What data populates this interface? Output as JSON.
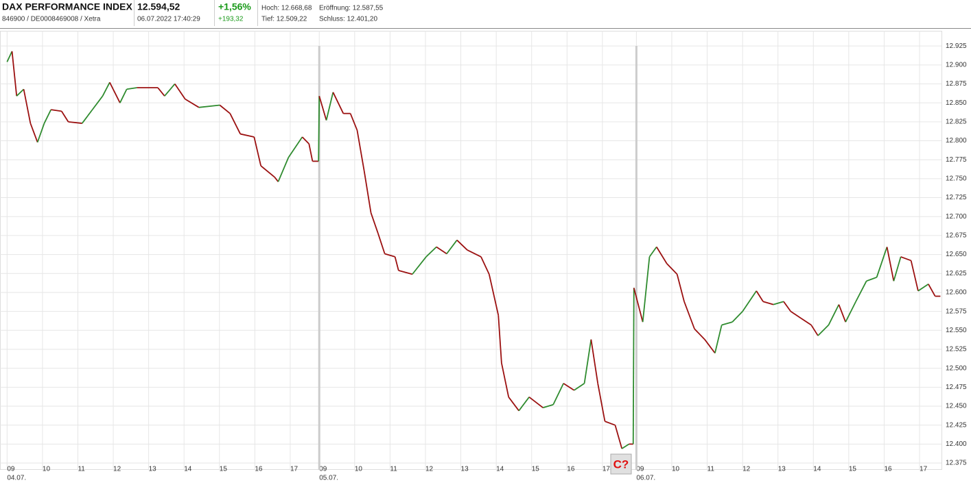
{
  "header": {
    "title": "DAX PERFORMANCE INDEX",
    "subtitle": "846900 / DE0008469008 / Xetra",
    "price": "12.594,52",
    "timestamp": "06.07.2022 17:40:29",
    "change_pct": "+1,56%",
    "change_abs": "+193,32",
    "high": "Hoch: 12.668,68",
    "open": "Eröffnung: 12.587,55",
    "low": "Tief: 12.509,22",
    "close": "Schluss: 12.401,20"
  },
  "chart_data": {
    "type": "line",
    "color": "#9b1010",
    "up_color": "#2e8b2e",
    "grid": true,
    "annotation": "C?",
    "x": [
      0,
      0.14,
      0.27,
      0.47,
      0.66,
      0.86,
      1.05,
      1.24,
      1.54,
      1.73,
      2.12,
      2.41,
      2.7,
      2.9,
      3.19,
      3.38,
      3.67,
      4.26,
      4.45,
      4.74,
      5.03,
      5.42,
      6.01,
      6.3,
      6.59,
      6.98,
      7.17,
      7.56,
      7.66,
      7.95,
      8.34,
      8.53,
      8.63,
      8.8,
      8.82,
      9.02,
      9.21,
      9.5,
      9.7,
      9.89,
      10.09,
      10.28,
      10.48,
      10.67,
      10.96,
      11.06,
      11.45,
      11.84,
      12.13,
      12.42,
      12.71,
      13.0,
      13.39,
      13.62,
      13.88,
      13.97,
      14.17,
      14.46,
      14.75,
      15.14,
      15.43,
      15.72,
      16.02,
      16.31,
      16.5,
      16.69,
      16.89,
      17.18,
      17.37,
      17.57,
      17.69,
      17.71,
      17.96,
      18.15,
      18.35,
      18.64,
      18.93,
      19.13,
      19.42,
      19.71,
      20.0,
      20.19,
      20.49,
      20.78,
      21.17,
      21.36,
      21.65,
      21.94,
      22.14,
      22.43,
      22.72,
      22.91,
      23.21,
      23.5,
      23.69,
      23.98,
      24.28,
      24.57,
      24.86,
      25.05,
      25.25,
      25.54,
      25.74,
      26.03,
      26.22,
      26.37
    ],
    "values": [
      12904,
      12918,
      12859,
      12868,
      12823,
      12798,
      12823,
      12841,
      12839,
      12825,
      12823,
      12841,
      12859,
      12877,
      12850,
      12868,
      12870,
      12870,
      12859,
      12875,
      12855,
      12844,
      12847,
      12836,
      12809,
      12805,
      12767,
      12752,
      12746,
      12778,
      12805,
      12796,
      12773,
      12773,
      12859,
      12827,
      12864,
      12836,
      12836,
      12814,
      12760,
      12705,
      12678,
      12651,
      12647,
      12629,
      12624,
      12647,
      12660,
      12651,
      12669,
      12656,
      12647,
      12624,
      12570,
      12507,
      12462,
      12444,
      12462,
      12448,
      12452,
      12480,
      12471,
      12480,
      12538,
      12480,
      12430,
      12425,
      12394,
      12400,
      12400,
      12606,
      12561,
      12647,
      12660,
      12638,
      12624,
      12588,
      12552,
      12538,
      12520,
      12557,
      12561,
      12575,
      12602,
      12588,
      12584,
      12588,
      12575,
      12566,
      12557,
      12543,
      12557,
      12584,
      12561,
      12588,
      12615,
      12620,
      12660,
      12615,
      12647,
      12642,
      12602,
      12611,
      12595,
      12595
    ],
    "xlim": [
      -0.2,
      26.4
    ],
    "ylim": [
      12366,
      12945
    ],
    "xticks": [
      {
        "value": 0,
        "label": "09"
      },
      {
        "value": 1,
        "label": "10"
      },
      {
        "value": 2,
        "label": "11"
      },
      {
        "value": 3,
        "label": "12"
      },
      {
        "value": 4,
        "label": "13"
      },
      {
        "value": 5,
        "label": "14"
      },
      {
        "value": 6,
        "label": "15"
      },
      {
        "value": 7,
        "label": "16"
      },
      {
        "value": 8,
        "label": "17"
      },
      {
        "value": 8.82,
        "label": "09"
      },
      {
        "value": 9.82,
        "label": "10"
      },
      {
        "value": 10.82,
        "label": "11"
      },
      {
        "value": 11.82,
        "label": "12"
      },
      {
        "value": 12.82,
        "label": "13"
      },
      {
        "value": 13.82,
        "label": "14"
      },
      {
        "value": 14.82,
        "label": "15"
      },
      {
        "value": 15.82,
        "label": "16"
      },
      {
        "value": 16.82,
        "label": "17"
      },
      {
        "value": 17.78,
        "label": "09"
      },
      {
        "value": 18.78,
        "label": "10"
      },
      {
        "value": 19.78,
        "label": "11"
      },
      {
        "value": 20.78,
        "label": "12"
      },
      {
        "value": 21.78,
        "label": "13"
      },
      {
        "value": 22.78,
        "label": "14"
      },
      {
        "value": 23.78,
        "label": "15"
      },
      {
        "value": 24.78,
        "label": "16"
      },
      {
        "value": 25.78,
        "label": "17"
      }
    ],
    "date_labels": [
      {
        "value": 0,
        "label": "04.07."
      },
      {
        "value": 8.82,
        "label": "05.07."
      },
      {
        "value": 17.78,
        "label": "06.07."
      }
    ],
    "yticks": [
      {
        "value": 12375,
        "label": "12.375"
      },
      {
        "value": 12400,
        "label": "12.400"
      },
      {
        "value": 12425,
        "label": "12.425"
      },
      {
        "value": 12450,
        "label": "12.450"
      },
      {
        "value": 12475,
        "label": "12.475"
      },
      {
        "value": 12500,
        "label": "12.500"
      },
      {
        "value": 12525,
        "label": "12.525"
      },
      {
        "value": 12550,
        "label": "12.550"
      },
      {
        "value": 12575,
        "label": "12.575"
      },
      {
        "value": 12600,
        "label": "12.600"
      },
      {
        "value": 12625,
        "label": "12.625"
      },
      {
        "value": 12650,
        "label": "12.650"
      },
      {
        "value": 12675,
        "label": "12.675"
      },
      {
        "value": 12700,
        "label": "12.700"
      },
      {
        "value": 12725,
        "label": "12.725"
      },
      {
        "value": 12750,
        "label": "12.750"
      },
      {
        "value": 12775,
        "label": "12.775"
      },
      {
        "value": 12800,
        "label": "12.800"
      },
      {
        "value": 12825,
        "label": "12.825"
      },
      {
        "value": 12850,
        "label": "12.850"
      },
      {
        "value": 12875,
        "label": "12.875"
      },
      {
        "value": 12900,
        "label": "12.900"
      },
      {
        "value": 12925,
        "label": "12.925"
      }
    ]
  }
}
